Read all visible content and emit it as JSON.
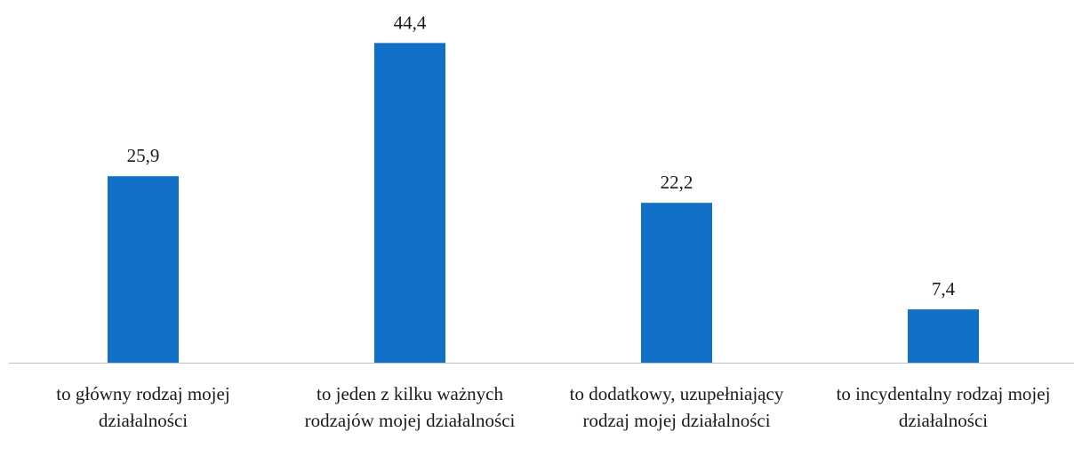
{
  "chart_data": {
    "type": "bar",
    "categories": [
      "to główny rodzaj mojej działalności",
      "to jeden z kilku ważnych rodzajów mojej działalności",
      "to dodatkowy, uzupełniający rodzaj mojej działalności",
      "to incydentalny rodzaj mojej działalności"
    ],
    "values": [
      25.9,
      44.4,
      22.2,
      7.4
    ],
    "value_labels": [
      "25,9",
      "44,4",
      "22,2",
      "7,4"
    ],
    "color": "#1070c8"
  }
}
